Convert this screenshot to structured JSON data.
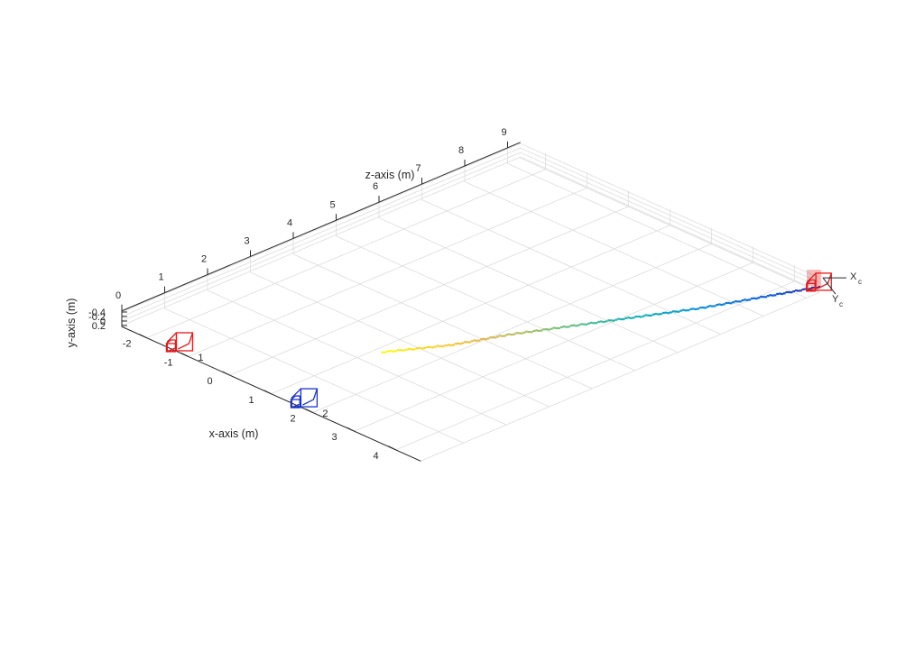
{
  "chart_data": {
    "type": "scatter",
    "projection": "3d",
    "grid": true,
    "axes": {
      "x": {
        "label": "x-axis (m)",
        "ticks": [
          -2,
          -1,
          0,
          1,
          2,
          3,
          4
        ],
        "tick_labels": [
          "-2",
          "-1",
          "0",
          "1",
          "2",
          "3",
          "4"
        ],
        "lim": [
          -2.6,
          4.6
        ]
      },
      "y": {
        "label": "y-axis (m)",
        "ticks": [
          -0.4,
          -0.2,
          0,
          0.2
        ],
        "tick_labels": [
          "-0.4",
          "-0.2",
          "0",
          "0.2"
        ],
        "lim": [
          -0.45,
          0.25
        ]
      },
      "z": {
        "label": "z-axis (m)",
        "ticks": [
          0,
          1,
          2,
          3,
          4,
          5,
          6,
          7,
          8,
          9
        ],
        "tick_labels": [
          "0",
          "1",
          "2",
          "3",
          "4",
          "5",
          "6",
          "7",
          "8",
          "9"
        ],
        "lim": [
          0,
          9.3
        ]
      }
    },
    "cameras": [
      {
        "label": "1",
        "x": -1.2,
        "y": 0,
        "z": 0,
        "color": "#e41a1c"
      },
      {
        "label": "2",
        "x": 1.8,
        "y": 0,
        "z": 0,
        "color": "#1a33cc"
      }
    ],
    "trajectory": {
      "colormap": "parula",
      "points": [
        {
          "x": 4.6,
          "y": 0.0,
          "z": 9.3
        },
        {
          "x": 4.2,
          "y": 0.0,
          "z": 8.3
        },
        {
          "x": 3.8,
          "y": 0.0,
          "z": 7.3
        },
        {
          "x": 3.3,
          "y": 0.0,
          "z": 6.3
        },
        {
          "x": 2.8,
          "y": 0.0,
          "z": 5.3
        },
        {
          "x": 2.3,
          "y": 0.0,
          "z": 4.3
        },
        {
          "x": 1.9,
          "y": 0.0,
          "z": 3.3
        },
        {
          "x": 1.3,
          "y": 0.0,
          "z": 2.3
        }
      ]
    },
    "current_camera": {
      "x": 4.6,
      "y": 0.0,
      "z": 9.3,
      "color": "#e41a1c"
    },
    "camera_axis_labels": {
      "x": "X",
      "x_sub": "c",
      "y": "Y",
      "y_sub": "c"
    }
  }
}
